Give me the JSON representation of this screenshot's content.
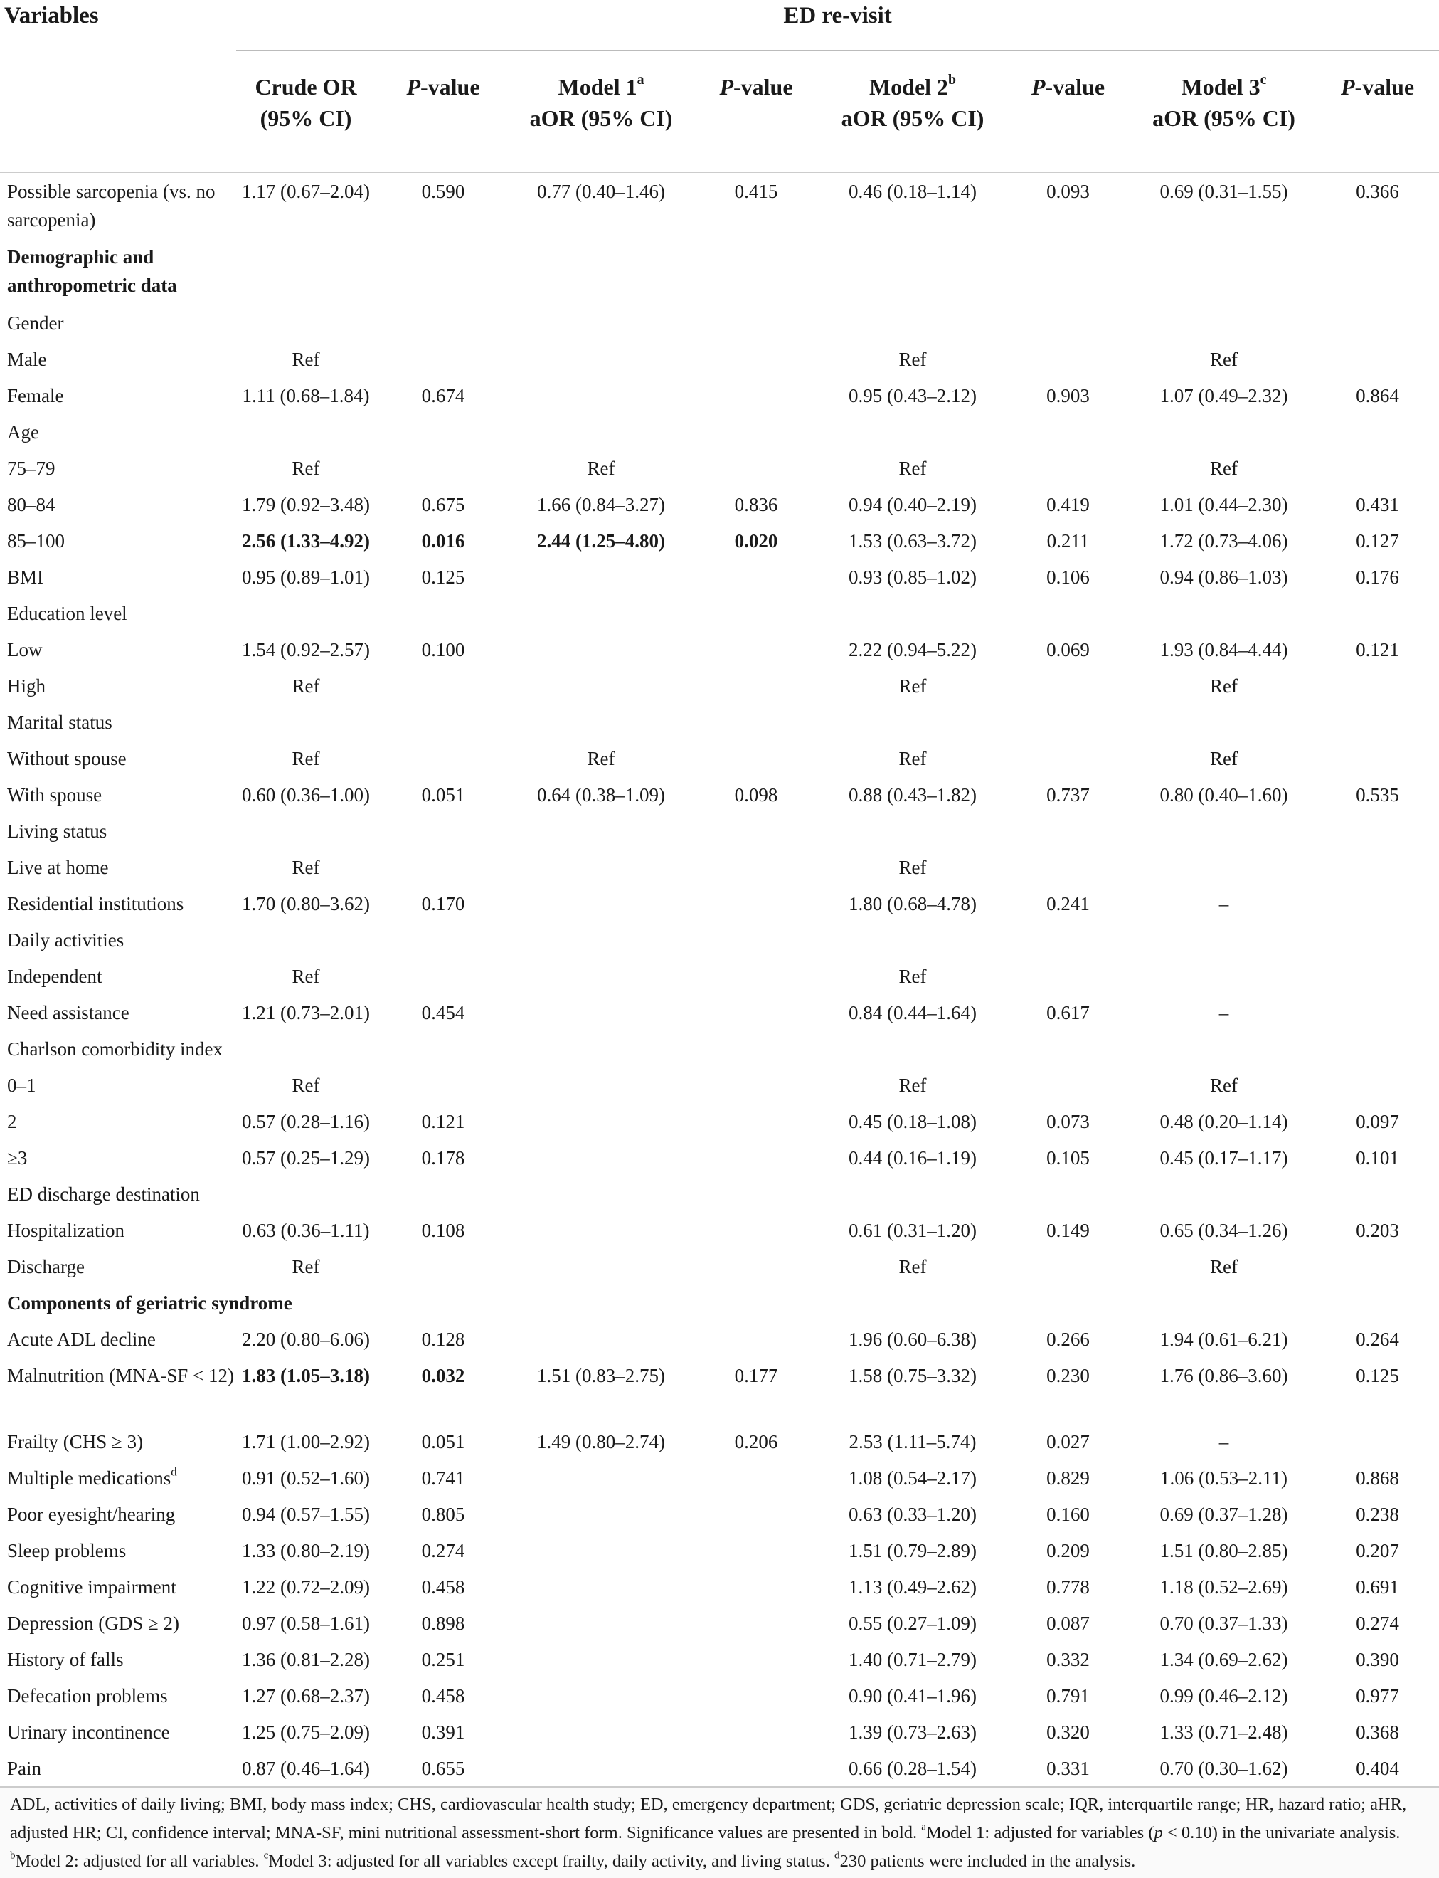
{
  "header": {
    "variables": "Variables",
    "group": "ED re-visit"
  },
  "columns": [
    {
      "line1": "Crude OR",
      "line2": "(95% CI)"
    },
    {
      "italic": "P",
      "text": "-value"
    },
    {
      "line1": "Model 1",
      "sup": "a",
      "line2": "aOR (95% CI)"
    },
    {
      "italic": "P",
      "text": "-value"
    },
    {
      "line1": "Model 2",
      "sup": "b",
      "line2": "aOR (95% CI)"
    },
    {
      "italic": "P",
      "text": "-value"
    },
    {
      "line1": "Model 3",
      "sup": "c",
      "line2": "aOR (95% CI)"
    },
    {
      "italic": "P",
      "text": "-value"
    }
  ],
  "rows": [
    {
      "label": "Possible sarcopenia (vs. no sarcopenia)",
      "cells": [
        "1.17 (0.67–2.04)",
        "0.590",
        "0.77 (0.40–1.46)",
        "0.415",
        "0.46 (0.18–1.14)",
        "0.093",
        "0.69 (0.31–1.55)",
        "0.366"
      ]
    },
    {
      "label": "Demographic and anthropometric data",
      "section": true
    },
    {
      "label": "Gender"
    },
    {
      "label": "Male",
      "cells": [
        "Ref",
        null,
        null,
        null,
        "Ref",
        null,
        "Ref",
        null
      ]
    },
    {
      "label": "Female",
      "cells": [
        "1.11 (0.68–1.84)",
        "0.674",
        null,
        null,
        "0.95 (0.43–2.12)",
        "0.903",
        "1.07 (0.49–2.32)",
        "0.864"
      ]
    },
    {
      "label": "Age"
    },
    {
      "label": "75–79",
      "cells": [
        "Ref",
        null,
        "Ref",
        null,
        "Ref",
        null,
        "Ref",
        null
      ]
    },
    {
      "label": "80–84",
      "cells": [
        "1.79 (0.92–3.48)",
        "0.675",
        "1.66 (0.84–3.27)",
        "0.836",
        "0.94 (0.40–2.19)",
        "0.419",
        "1.01 (0.44–2.30)",
        "0.431"
      ]
    },
    {
      "label": "85–100",
      "cells": [
        "2.56 (1.33–4.92)",
        "0.016",
        "2.44 (1.25–4.80)",
        "0.020",
        "1.53 (0.63–3.72)",
        "0.211",
        "1.72 (0.73–4.06)",
        "0.127"
      ],
      "bold": [
        0,
        1,
        2,
        3
      ]
    },
    {
      "label": "BMI",
      "cells": [
        "0.95 (0.89–1.01)",
        "0.125",
        null,
        null,
        "0.93 (0.85–1.02)",
        "0.106",
        "0.94 (0.86–1.03)",
        "0.176"
      ]
    },
    {
      "label": "Education level"
    },
    {
      "label": "Low",
      "cells": [
        "1.54 (0.92–2.57)",
        "0.100",
        null,
        null,
        "2.22 (0.94–5.22)",
        "0.069",
        "1.93 (0.84–4.44)",
        "0.121"
      ]
    },
    {
      "label": "High",
      "cells": [
        "Ref",
        null,
        null,
        null,
        "Ref",
        null,
        "Ref",
        null
      ]
    },
    {
      "label": "Marital status"
    },
    {
      "label": "Without spouse",
      "cells": [
        "Ref",
        null,
        "Ref",
        null,
        "Ref",
        null,
        "Ref",
        null
      ]
    },
    {
      "label": "With spouse",
      "cells": [
        "0.60 (0.36–1.00)",
        "0.051",
        "0.64 (0.38–1.09)",
        "0.098",
        "0.88 (0.43–1.82)",
        "0.737",
        "0.80 (0.40–1.60)",
        "0.535"
      ]
    },
    {
      "label": "Living status"
    },
    {
      "label": "Live at home",
      "cells": [
        "Ref",
        null,
        null,
        null,
        "Ref",
        null,
        null,
        null
      ]
    },
    {
      "label": "Residential institutions",
      "cells": [
        "1.70 (0.80–3.62)",
        "0.170",
        null,
        null,
        "1.80 (0.68–4.78)",
        "0.241",
        "–",
        null
      ]
    },
    {
      "label": "Daily activities"
    },
    {
      "label": "Independent",
      "cells": [
        "Ref",
        null,
        null,
        null,
        "Ref",
        null,
        null,
        null
      ]
    },
    {
      "label": "Need assistance",
      "cells": [
        "1.21 (0.73–2.01)",
        "0.454",
        null,
        null,
        "0.84 (0.44–1.64)",
        "0.617",
        "–",
        null
      ]
    },
    {
      "label": "Charlson comorbidity index"
    },
    {
      "label": "0–1",
      "cells": [
        "Ref",
        null,
        null,
        null,
        "Ref",
        null,
        "Ref",
        null
      ]
    },
    {
      "label": "2",
      "cells": [
        "0.57 (0.28–1.16)",
        "0.121",
        null,
        null,
        "0.45 (0.18–1.08)",
        "0.073",
        "0.48 (0.20–1.14)",
        "0.097"
      ]
    },
    {
      "label": "≥3",
      "cells": [
        "0.57 (0.25–1.29)",
        "0.178",
        null,
        null,
        "0.44 (0.16–1.19)",
        "0.105",
        "0.45 (0.17–1.17)",
        "0.101"
      ]
    },
    {
      "label": "ED discharge destination"
    },
    {
      "label": "Hospitalization",
      "cells": [
        "0.63 (0.36–1.11)",
        "0.108",
        null,
        null,
        "0.61 (0.31–1.20)",
        "0.149",
        "0.65 (0.34–1.26)",
        "0.203"
      ]
    },
    {
      "label": "Discharge",
      "cells": [
        "Ref",
        null,
        null,
        null,
        "Ref",
        null,
        "Ref",
        null
      ]
    },
    {
      "label": "Components of geriatric syndrome",
      "section": true
    },
    {
      "label": "Acute ADL decline",
      "cells": [
        "2.20 (0.80–6.06)",
        "0.128",
        null,
        null,
        "1.96 (0.60–6.38)",
        "0.266",
        "1.94 (0.61–6.21)",
        "0.264"
      ]
    },
    {
      "label": "Malnutrition (MNA-SF < 12)",
      "cells": [
        "1.83 (1.05–3.18)",
        "0.032",
        "1.51 (0.83–2.75)",
        "0.177",
        "1.58 (0.75–3.32)",
        "0.230",
        "1.76 (0.86–3.60)",
        "0.125"
      ],
      "bold": [
        0,
        1
      ]
    },
    {
      "label": "Frailty (CHS ≥ 3)",
      "cells": [
        "1.71 (1.00–2.92)",
        "0.051",
        "1.49 (0.80–2.74)",
        "0.206",
        "2.53 (1.11–5.74)",
        "0.027",
        "–",
        null
      ]
    },
    {
      "label": "Multiple medications",
      "sup": "d",
      "cells": [
        "0.91 (0.52–1.60)",
        "0.741",
        null,
        null,
        "1.08 (0.54–2.17)",
        "0.829",
        "1.06 (0.53–2.11)",
        "0.868"
      ]
    },
    {
      "label": "Poor eyesight/hearing",
      "cells": [
        "0.94 (0.57–1.55)",
        "0.805",
        null,
        null,
        "0.63 (0.33–1.20)",
        "0.160",
        "0.69 (0.37–1.28)",
        "0.238"
      ]
    },
    {
      "label": "Sleep problems",
      "cells": [
        "1.33 (0.80–2.19)",
        "0.274",
        null,
        null,
        "1.51 (0.79–2.89)",
        "0.209",
        "1.51 (0.80–2.85)",
        "0.207"
      ]
    },
    {
      "label": "Cognitive impairment",
      "cells": [
        "1.22 (0.72–2.09)",
        "0.458",
        null,
        null,
        "1.13 (0.49–2.62)",
        "0.778",
        "1.18 (0.52–2.69)",
        "0.691"
      ]
    },
    {
      "label": "Depression (GDS ≥ 2)",
      "cells": [
        "0.97 (0.58–1.61)",
        "0.898",
        null,
        null,
        "0.55 (0.27–1.09)",
        "0.087",
        "0.70 (0.37–1.33)",
        "0.274"
      ]
    },
    {
      "label": "History of falls",
      "cells": [
        "1.36 (0.81–2.28)",
        "0.251",
        null,
        null,
        "1.40 (0.71–2.79)",
        "0.332",
        "1.34 (0.69–2.62)",
        "0.390"
      ]
    },
    {
      "label": "Defecation problems",
      "cells": [
        "1.27 (0.68–2.37)",
        "0.458",
        null,
        null,
        "0.90 (0.41–1.96)",
        "0.791",
        "0.99 (0.46–2.12)",
        "0.977"
      ]
    },
    {
      "label": "Urinary incontinence",
      "cells": [
        "1.25 (0.75–2.09)",
        "0.391",
        null,
        null,
        "1.39 (0.73–2.63)",
        "0.320",
        "1.33 (0.71–2.48)",
        "0.368"
      ]
    },
    {
      "label": "Pain",
      "cells": [
        "0.87 (0.46–1.64)",
        "0.655",
        null,
        null,
        "0.66 (0.28–1.54)",
        "0.331",
        "0.70 (0.30–1.62)",
        "0.404"
      ]
    }
  ],
  "footnote": [
    {
      "t": "ADL, activities of daily living; BMI, body mass index; CHS, cardiovascular health study; ED, emergency department; GDS, geriatric depression scale; IQR, interquartile range; HR, hazard ratio; aHR, adjusted HR; CI, confidence interval; MNA-SF, mini nutritional assessment-short form. Significance values are presented in bold. "
    },
    {
      "t": "a",
      "s": "sup"
    },
    {
      "t": "Model 1: adjusted for variables ("
    },
    {
      "t": "p",
      "s": "italic"
    },
    {
      "t": " < 0.10) in the univariate analysis. "
    },
    {
      "t": "b",
      "s": "sup"
    },
    {
      "t": "Model 2: adjusted for all variables. "
    },
    {
      "t": "c",
      "s": "sup"
    },
    {
      "t": "Model 3: adjusted for all variables except frailty, daily activity, and living status. "
    },
    {
      "t": "d",
      "s": "sup"
    },
    {
      "t": "230 patients were included in the analysis."
    }
  ]
}
